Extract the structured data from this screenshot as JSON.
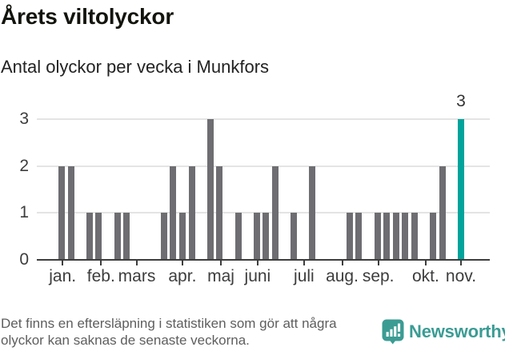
{
  "title": "Årets viltolyckor",
  "subtitle": "Antal olyckor per vecka i Munkfors",
  "chart_data": {
    "type": "bar",
    "title": "Årets viltolyckor",
    "subtitle": "Antal olyckor per vecka i Munkfors",
    "x_unit": "week (one bar per week, January–November)",
    "ylim": [
      0,
      3
    ],
    "yticks": [
      0,
      1,
      2,
      3
    ],
    "grid": true,
    "legend": false,
    "weekly_values": [
      2,
      2,
      0,
      1,
      1,
      0,
      1,
      1,
      0,
      0,
      0,
      1,
      2,
      1,
      2,
      0,
      3,
      2,
      0,
      1,
      0,
      1,
      1,
      2,
      0,
      1,
      0,
      2,
      0,
      0,
      0,
      1,
      1,
      0,
      1,
      1,
      1,
      1,
      1,
      0,
      1,
      2,
      0,
      3
    ],
    "month_ticks": [
      {
        "label": "jan.",
        "slot": 0.1
      },
      {
        "label": "feb.",
        "slot": 4.25
      },
      {
        "label": "mars",
        "slot": 8.1
      },
      {
        "label": "apr.",
        "slot": 13.0
      },
      {
        "label": "maj",
        "slot": 17.15
      },
      {
        "label": "juni",
        "slot": 21.1
      },
      {
        "label": "juli",
        "slot": 26.1
      },
      {
        "label": "aug.",
        "slot": 30.2
      },
      {
        "label": "sep.",
        "slot": 34.1
      },
      {
        "label": "okt.",
        "slot": 39.2
      },
      {
        "label": "nov.",
        "slot": 43.0
      }
    ],
    "highlight": {
      "index": 43,
      "value": 3,
      "label": "3"
    },
    "colors": {
      "bar": "#6d6d72",
      "highlight": "#00a49b",
      "gridline": "#e4e4e4",
      "axis": "#3d3d3d",
      "tick_label": "#3d3d3d",
      "value_label": "#333333"
    }
  },
  "footer": {
    "note_line1": "Det finns en eftersläpning i statistiken som gör att några",
    "note_line2": "olyckor kan saknas de senaste veckorna."
  },
  "logo": {
    "text": "Newsworthy",
    "icon": "newsworthy-speech-bubble-bar-chart-icon",
    "color": "#3a9c94"
  }
}
